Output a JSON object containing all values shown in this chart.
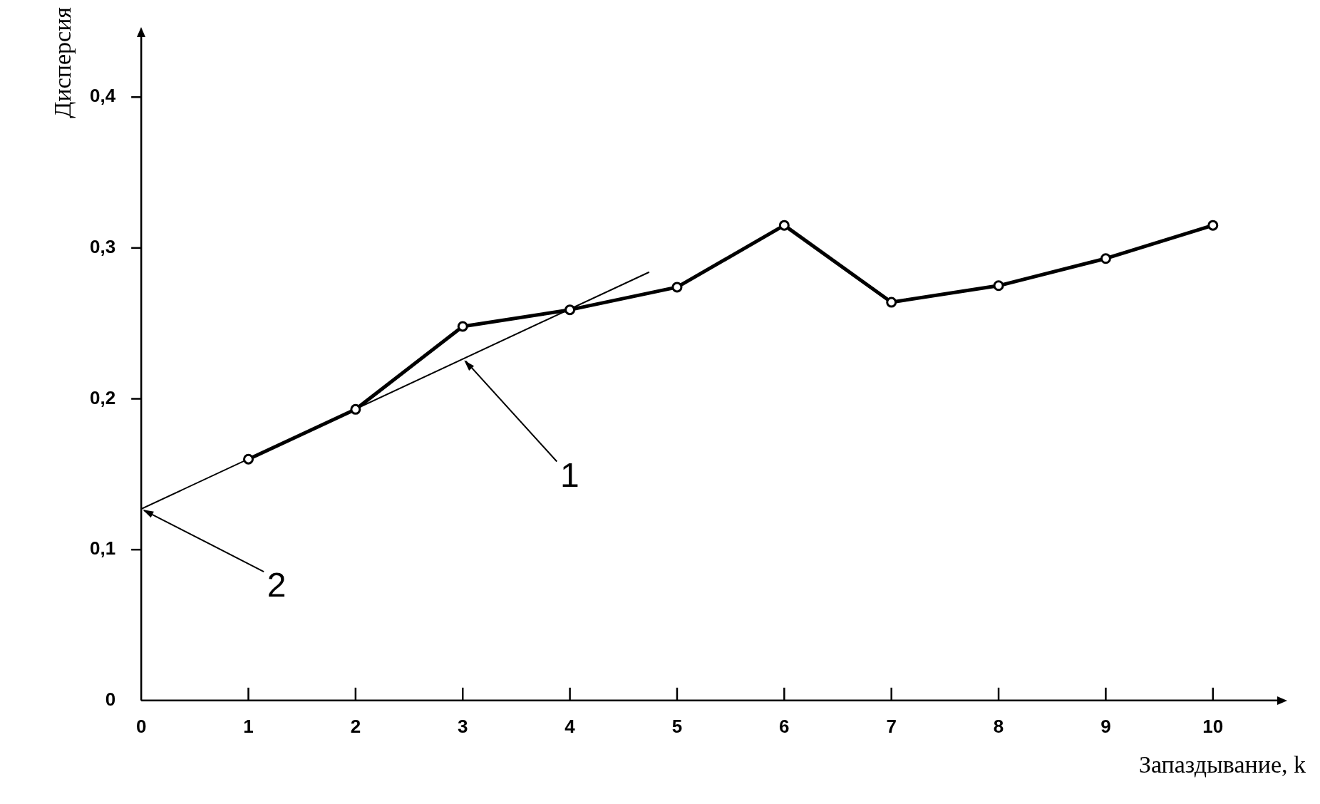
{
  "chart_data": {
    "type": "line",
    "xlabel": "Запаздывание, k",
    "ylabel": "Дисперсия",
    "series": [
      {
        "color": "#000000",
        "marker": "circle",
        "x": [
          1,
          2,
          3,
          4,
          5,
          6,
          7,
          8,
          9,
          10
        ],
        "values": [
          0.16,
          0.193,
          0.248,
          0.259,
          0.274,
          0.315,
          0.264,
          0.275,
          0.293,
          0.315
        ]
      },
      {
        "color": "#000000",
        "marker": "none",
        "x": [
          0,
          4.74
        ],
        "values": [
          0.127,
          0.284
        ]
      }
    ],
    "xlim": [
      0,
      10.6
    ],
    "xticks": [
      0,
      1,
      2,
      3,
      4,
      5,
      6,
      7,
      8,
      9,
      10
    ],
    "ylim": [
      0,
      0.44
    ],
    "yticks": [
      {
        "value": 0,
        "label": "0"
      },
      {
        "value": 0.1,
        "label": "0,1"
      },
      {
        "value": 0.2,
        "label": "0,2"
      },
      {
        "value": 0.3,
        "label": "0,3"
      },
      {
        "value": 0.4,
        "label": "0,4"
      }
    ],
    "grid": false,
    "legend": false,
    "annotations": [
      {
        "text": "1",
        "x": 3,
        "y": 0.226
      },
      {
        "text": "2",
        "x": 0,
        "y": 0.127
      }
    ]
  }
}
